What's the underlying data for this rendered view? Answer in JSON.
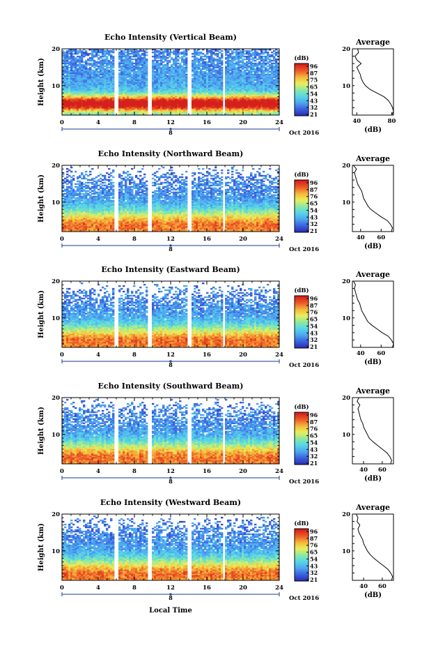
{
  "figure": {
    "xlabel": "Local Time",
    "date_label": "Oct 2016",
    "day_marker": "8",
    "colorbar_unit": "(dB)",
    "profile_title": "Average",
    "profile_xlabel": "(dB)",
    "ylabel": "Height (km)"
  },
  "colors": {
    "colormap": [
      "#2a2fb4",
      "#3a64e0",
      "#4fa7f0",
      "#55d8e8",
      "#8fe8a0",
      "#e9ef5a",
      "#f6b63a",
      "#ee5a26",
      "#d4201c"
    ]
  },
  "chart_data": [
    {
      "type": "heatmap",
      "title": "Echo Intensity (Vertical Beam)",
      "xlabel": "",
      "ylabel": "Height (km)",
      "xlim": [
        0,
        24
      ],
      "ylim": [
        2,
        20
      ],
      "xticks": [
        0,
        4,
        8,
        12,
        16,
        20,
        24
      ],
      "yticks": [
        10,
        20
      ],
      "colorbar": {
        "label": "(dB)",
        "ticks": [
          96,
          87,
          75,
          65,
          54,
          43,
          32,
          21
        ],
        "range": [
          21,
          96
        ]
      },
      "data_gaps_hours": [
        6.0,
        9.7,
        14.1,
        17.9
      ],
      "profile": {
        "title": "Average",
        "xlabel": "(dB)",
        "xlim": [
          35,
          82
        ],
        "xticks": [
          40,
          80
        ],
        "ylim": [
          2,
          20
        ],
        "height_km": [
          2,
          3,
          4,
          5,
          6,
          7,
          8,
          9,
          10,
          11,
          12,
          13,
          14,
          15,
          16,
          17,
          18,
          19,
          20
        ],
        "mean_db": [
          80,
          82,
          81,
          79,
          76,
          71,
          63,
          55,
          50,
          47,
          45,
          44,
          42,
          40,
          45,
          40,
          38,
          42,
          41
        ]
      }
    },
    {
      "type": "heatmap",
      "title": "Echo Intensity (Northward Beam)",
      "xlabel": "",
      "ylabel": "Height (km)",
      "xlim": [
        0,
        24
      ],
      "ylim": [
        2,
        20
      ],
      "xticks": [
        0,
        4,
        8,
        12,
        16,
        20,
        24
      ],
      "yticks": [
        10,
        20
      ],
      "colorbar": {
        "label": "(dB)",
        "ticks": [
          96,
          87,
          76,
          65,
          54,
          43,
          32,
          21
        ],
        "range": [
          21,
          96
        ]
      },
      "data_gaps_hours": [
        6.0,
        9.7,
        14.1,
        17.9
      ],
      "profile": {
        "title": "Average",
        "xlabel": "(dB)",
        "xlim": [
          32,
          72
        ],
        "xticks": [
          40,
          60
        ],
        "ylim": [
          2,
          20
        ],
        "height_km": [
          2,
          3,
          4,
          5,
          6,
          7,
          8,
          9,
          10,
          11,
          12,
          13,
          14,
          15,
          16,
          17,
          18,
          19,
          20
        ],
        "mean_db": [
          70,
          71,
          69,
          66,
          60,
          55,
          50,
          47,
          45,
          43,
          42,
          41,
          39,
          37,
          36,
          35,
          34,
          36,
          33
        ]
      }
    },
    {
      "type": "heatmap",
      "title": "Echo Intensity (Eastward Beam)",
      "xlabel": "",
      "ylabel": "Height (km)",
      "xlim": [
        0,
        24
      ],
      "ylim": [
        2,
        20
      ],
      "xticks": [
        0,
        4,
        8,
        12,
        16,
        20,
        24
      ],
      "yticks": [
        10,
        20
      ],
      "colorbar": {
        "label": "(dB)",
        "ticks": [
          96,
          87,
          76,
          65,
          54,
          43,
          32,
          21
        ],
        "range": [
          21,
          96
        ]
      },
      "data_gaps_hours": [
        6.0,
        9.7,
        14.1,
        17.9
      ],
      "profile": {
        "title": "Average",
        "xlabel": "(dB)",
        "xlim": [
          32,
          72
        ],
        "xticks": [
          40,
          60
        ],
        "ylim": [
          2,
          20
        ],
        "height_km": [
          2,
          3,
          4,
          5,
          6,
          7,
          8,
          9,
          10,
          11,
          12,
          13,
          14,
          15,
          16,
          17,
          18,
          19,
          20
        ],
        "mean_db": [
          71,
          72,
          70,
          67,
          61,
          56,
          51,
          47,
          45,
          43,
          41,
          40,
          39,
          37,
          36,
          35,
          34,
          35,
          33
        ]
      }
    },
    {
      "type": "heatmap",
      "title": "Echo Intensity (Southward Beam)",
      "xlabel": "",
      "ylabel": "Height (km)",
      "xlim": [
        0,
        24
      ],
      "ylim": [
        2,
        20
      ],
      "xticks": [
        0,
        4,
        8,
        12,
        16,
        20,
        24
      ],
      "yticks": [
        10,
        20
      ],
      "colorbar": {
        "label": "(dB)",
        "ticks": [
          96,
          87,
          76,
          65,
          54,
          43,
          32,
          21
        ],
        "range": [
          21,
          96
        ]
      },
      "data_gaps_hours": [
        6.0,
        9.7,
        14.1,
        17.9
      ],
      "profile": {
        "title": "Average",
        "xlabel": "(dB)",
        "xlim": [
          28,
          72
        ],
        "xticks": [
          40,
          60
        ],
        "ylim": [
          2,
          20
        ],
        "height_km": [
          2,
          3,
          4,
          5,
          6,
          7,
          8,
          9,
          10,
          11,
          12,
          13,
          14,
          15,
          16,
          17,
          18,
          19,
          20
        ],
        "mean_db": [
          69,
          70,
          68,
          65,
          60,
          55,
          50,
          46,
          44,
          42,
          40,
          39,
          37,
          36,
          35,
          34,
          36,
          33,
          35
        ]
      }
    },
    {
      "type": "heatmap",
      "title": "Echo Intensity (Westward Beam)",
      "xlabel": "Local Time",
      "ylabel": "Height (km)",
      "xlim": [
        0,
        24
      ],
      "ylim": [
        2,
        20
      ],
      "xticks": [
        0,
        4,
        8,
        12,
        16,
        20,
        24
      ],
      "yticks": [
        10,
        20
      ],
      "colorbar": {
        "label": "(dB)",
        "ticks": [
          96,
          87,
          76,
          65,
          54,
          43,
          32,
          21
        ],
        "range": [
          21,
          96
        ]
      },
      "data_gaps_hours": [
        6.0,
        9.7,
        14.1,
        17.9
      ],
      "profile": {
        "title": "Average",
        "xlabel": "(dB)",
        "xlim": [
          28,
          72
        ],
        "xticks": [
          40,
          60
        ],
        "ylim": [
          2,
          20
        ],
        "height_km": [
          2,
          3,
          4,
          5,
          6,
          7,
          8,
          9,
          10,
          11,
          12,
          13,
          14,
          15,
          16,
          17,
          18,
          19,
          20
        ],
        "mean_db": [
          70,
          71,
          69,
          66,
          61,
          56,
          51,
          47,
          44,
          42,
          40,
          39,
          37,
          35,
          34,
          36,
          33,
          34,
          32
        ]
      }
    }
  ]
}
